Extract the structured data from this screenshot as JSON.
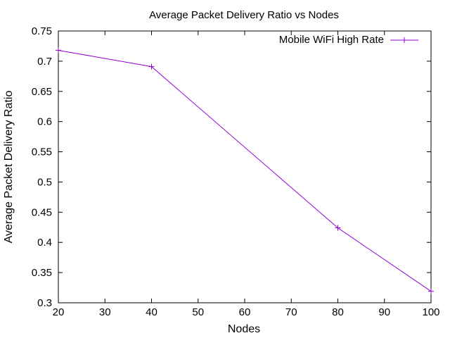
{
  "chart_data": {
    "type": "line",
    "title": "Average Packet Delivery Ratio vs Nodes",
    "xlabel": "Nodes",
    "ylabel": "Average Packet Delivery Ratio",
    "xlim": [
      20,
      100
    ],
    "ylim": [
      0.3,
      0.75
    ],
    "xticks": [
      "20",
      "30",
      "40",
      "50",
      "60",
      "70",
      "80",
      "90",
      "100"
    ],
    "yticks": [
      "0.3",
      "0.35",
      "0.4",
      "0.45",
      "0.5",
      "0.55",
      "0.6",
      "0.65",
      "0.7",
      "0.75"
    ],
    "grid": false,
    "legend_position": "top-right",
    "series": [
      {
        "name": "Mobile WiFi High Rate",
        "color": "#9400d3",
        "marker": "plus",
        "x": [
          20,
          40,
          80,
          100
        ],
        "y": [
          0.718,
          0.691,
          0.424,
          0.319
        ]
      }
    ]
  }
}
